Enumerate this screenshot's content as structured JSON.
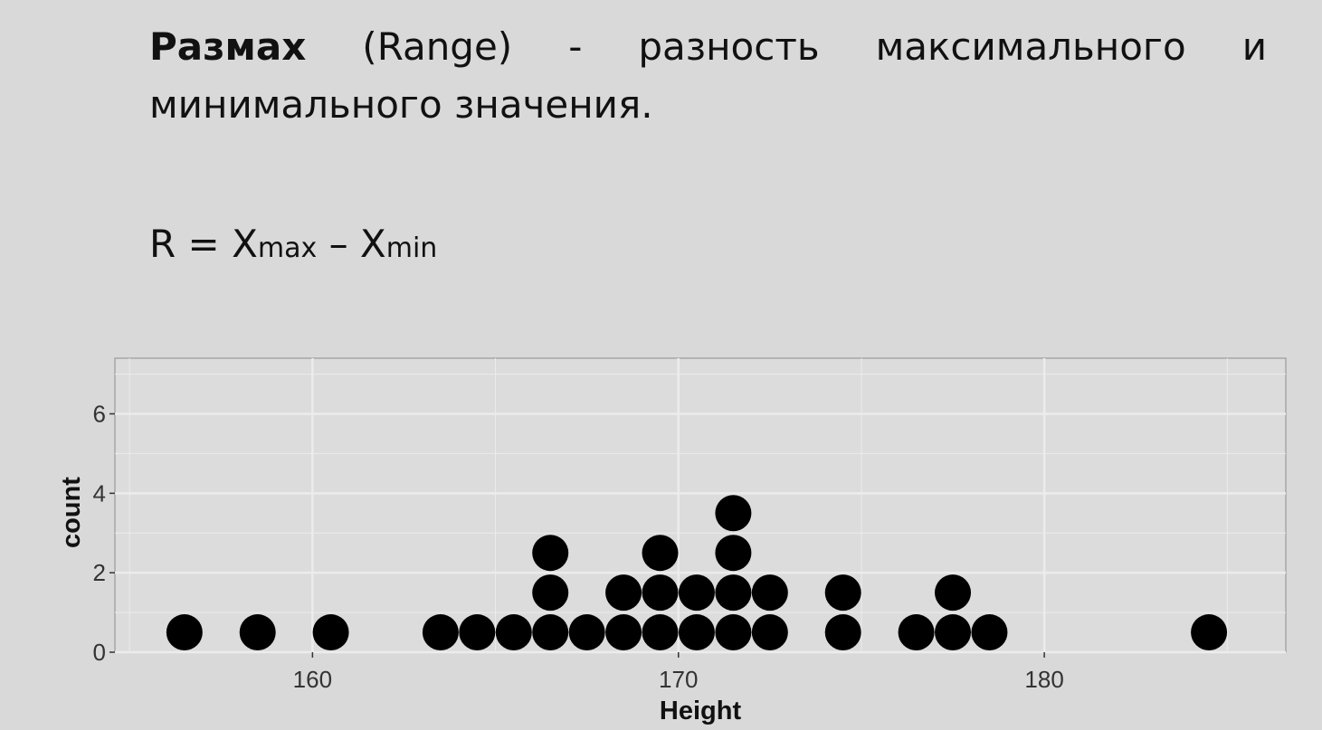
{
  "definition": {
    "term": "Размах",
    "text": " (Range) - разность максимального и минимального значения."
  },
  "formula": {
    "lhs": "R = X",
    "sub1": "max",
    "mid": " – X",
    "sub2": "min"
  },
  "chart_data": {
    "type": "scatter",
    "style": "dotplot",
    "xlabel": "Height",
    "ylabel": "count",
    "xlim": [
      154.6,
      186.6
    ],
    "ylim": [
      0,
      7.4
    ],
    "xticks": [
      160,
      170,
      180
    ],
    "yticks": [
      0,
      2,
      4,
      6
    ],
    "grid": true,
    "points": [
      {
        "x": 156.5,
        "count": 1
      },
      {
        "x": 158.5,
        "count": 1
      },
      {
        "x": 160.5,
        "count": 1
      },
      {
        "x": 163.5,
        "count": 1
      },
      {
        "x": 164.5,
        "count": 1
      },
      {
        "x": 165.5,
        "count": 1
      },
      {
        "x": 166.5,
        "count": 3
      },
      {
        "x": 167.5,
        "count": 1
      },
      {
        "x": 168.5,
        "count": 2
      },
      {
        "x": 169.5,
        "count": 3
      },
      {
        "x": 170.5,
        "count": 2
      },
      {
        "x": 171.5,
        "count": 4
      },
      {
        "x": 172.5,
        "count": 2
      },
      {
        "x": 174.5,
        "count": 2
      },
      {
        "x": 176.5,
        "count": 1
      },
      {
        "x": 177.5,
        "count": 2
      },
      {
        "x": 178.5,
        "count": 1
      },
      {
        "x": 184.5,
        "count": 1
      }
    ],
    "colors": {
      "dot": "#000000",
      "panel": "#dcdcdc",
      "grid": "#ececec",
      "border": "#9a9a9a"
    }
  }
}
